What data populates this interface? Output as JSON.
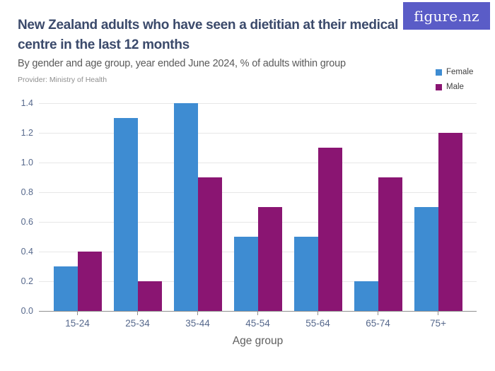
{
  "logo": {
    "text": "figure.nz",
    "bg_color": "#5A5CC7"
  },
  "header": {
    "title": "New Zealand adults who have seen a dietitian at their medical centre in the last 12 months",
    "subtitle": "By gender and age group, year ended June 2024, % of adults within group",
    "provider": "Provider: Ministry of Health"
  },
  "legend": {
    "items": [
      {
        "label": "Female",
        "color": "#3E8CD2"
      },
      {
        "label": "Male",
        "color": "#8A1572"
      }
    ]
  },
  "chart_data": {
    "type": "bar",
    "categories": [
      "15-24",
      "25-34",
      "35-44",
      "45-54",
      "55-64",
      "65-74",
      "75+"
    ],
    "series": [
      {
        "name": "Female",
        "color": "#3E8CD2",
        "values": [
          0.3,
          1.3,
          1.4,
          0.5,
          0.5,
          0.2,
          0.7
        ]
      },
      {
        "name": "Male",
        "color": "#8A1572",
        "values": [
          0.4,
          0.2,
          0.9,
          0.7,
          1.1,
          0.9,
          1.2
        ]
      }
    ],
    "title": "New Zealand adults who have seen a dietitian at their medical centre in the last 12 months",
    "xlabel": "Age group",
    "ylabel": "",
    "ylim": [
      0,
      1.4
    ],
    "yticks": [
      0.0,
      0.2,
      0.4,
      0.6,
      0.8,
      1.0,
      1.2,
      1.4
    ],
    "ytick_labels": [
      "0.0",
      "0.2",
      "0.4",
      "0.6",
      "0.8",
      "1.0",
      "1.2",
      "1.4"
    ],
    "grid": true,
    "legend_position": "top-right"
  }
}
